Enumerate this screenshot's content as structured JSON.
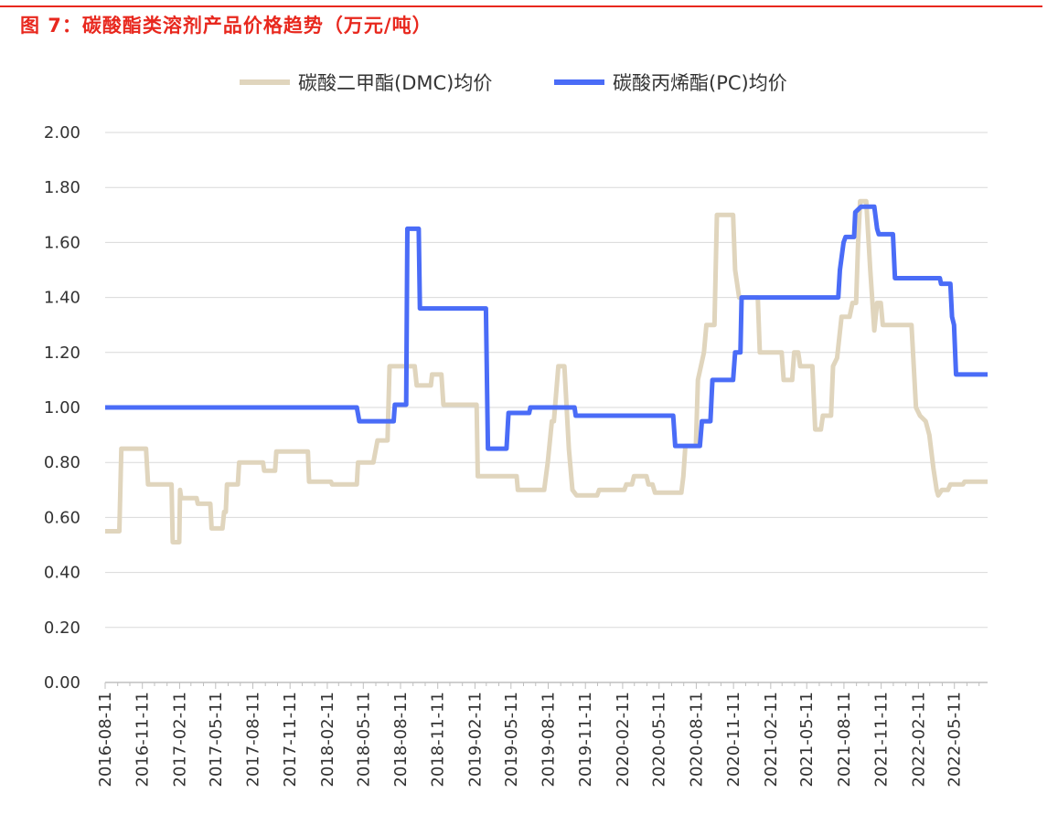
{
  "figure": {
    "title": "图 7：碳酸酯类溶剂产品价格趋势（万元/吨）"
  },
  "chart_data": {
    "type": "line",
    "title": "",
    "xlabel": "",
    "ylabel": "",
    "ylim": [
      0,
      2.0
    ],
    "yticks": [
      "0.00",
      "0.20",
      "0.40",
      "0.60",
      "0.80",
      "1.00",
      "1.20",
      "1.40",
      "1.60",
      "1.80",
      "2.00"
    ],
    "xticks": [
      "2016-08-11",
      "2016-11-11",
      "2017-02-11",
      "2017-05-11",
      "2017-08-11",
      "2017-11-11",
      "2018-02-11",
      "2018-05-11",
      "2018-08-11",
      "2018-11-11",
      "2019-02-11",
      "2019-05-11",
      "2019-08-11",
      "2019-11-11",
      "2020-02-11",
      "2020-05-11",
      "2020-08-11",
      "2020-11-11",
      "2021-02-11",
      "2021-05-11",
      "2021-08-11",
      "2021-11-11",
      "2022-02-11",
      "2022-05-11"
    ],
    "x_range": [
      "2016-08-11",
      "2022-08-01"
    ],
    "grid": "horizontal",
    "legend_position": "top",
    "series": [
      {
        "name": "碳酸二甲酯(DMC)均价",
        "color": "#e0d5bd",
        "points": [
          [
            "2016-08-11",
            0.55
          ],
          [
            "2016-09-15",
            0.55
          ],
          [
            "2016-09-20",
            0.85
          ],
          [
            "2016-11-20",
            0.85
          ],
          [
            "2016-11-25",
            0.72
          ],
          [
            "2017-01-22",
            0.72
          ],
          [
            "2017-01-25",
            0.51
          ],
          [
            "2017-02-10",
            0.51
          ],
          [
            "2017-02-12",
            0.7
          ],
          [
            "2017-02-15",
            0.67
          ],
          [
            "2017-03-25",
            0.67
          ],
          [
            "2017-03-28",
            0.65
          ],
          [
            "2017-04-28",
            0.65
          ],
          [
            "2017-05-01",
            0.56
          ],
          [
            "2017-05-28",
            0.56
          ],
          [
            "2017-06-01",
            0.62
          ],
          [
            "2017-06-05",
            0.62
          ],
          [
            "2017-06-08",
            0.72
          ],
          [
            "2017-07-05",
            0.72
          ],
          [
            "2017-07-08",
            0.8
          ],
          [
            "2017-09-05",
            0.8
          ],
          [
            "2017-09-08",
            0.77
          ],
          [
            "2017-10-05",
            0.77
          ],
          [
            "2017-10-08",
            0.84
          ],
          [
            "2017-12-25",
            0.84
          ],
          [
            "2017-12-28",
            0.73
          ],
          [
            "2018-02-20",
            0.73
          ],
          [
            "2018-02-23",
            0.72
          ],
          [
            "2018-04-25",
            0.72
          ],
          [
            "2018-04-28",
            0.8
          ],
          [
            "2018-06-05",
            0.8
          ],
          [
            "2018-06-15",
            0.88
          ],
          [
            "2018-07-10",
            0.88
          ],
          [
            "2018-07-15",
            1.15
          ],
          [
            "2018-09-15",
            1.15
          ],
          [
            "2018-09-20",
            1.08
          ],
          [
            "2018-10-25",
            1.08
          ],
          [
            "2018-10-28",
            1.12
          ],
          [
            "2018-11-20",
            1.12
          ],
          [
            "2018-11-25",
            1.01
          ],
          [
            "2019-02-15",
            1.01
          ],
          [
            "2019-02-18",
            0.75
          ],
          [
            "2019-05-25",
            0.75
          ],
          [
            "2019-05-28",
            0.7
          ],
          [
            "2019-08-01",
            0.7
          ],
          [
            "2019-08-10",
            0.8
          ],
          [
            "2019-08-20",
            0.95
          ],
          [
            "2019-08-25",
            0.95
          ],
          [
            "2019-09-05",
            1.15
          ],
          [
            "2019-09-20",
            1.15
          ],
          [
            "2019-10-01",
            0.85
          ],
          [
            "2019-10-10",
            0.7
          ],
          [
            "2019-10-20",
            0.68
          ],
          [
            "2019-12-10",
            0.68
          ],
          [
            "2019-12-15",
            0.7
          ],
          [
            "2020-02-15",
            0.7
          ],
          [
            "2020-02-20",
            0.72
          ],
          [
            "2020-03-05",
            0.72
          ],
          [
            "2020-03-10",
            0.75
          ],
          [
            "2020-04-10",
            0.75
          ],
          [
            "2020-04-15",
            0.72
          ],
          [
            "2020-04-25",
            0.72
          ],
          [
            "2020-05-01",
            0.69
          ],
          [
            "2020-07-05",
            0.69
          ],
          [
            "2020-07-10",
            0.75
          ],
          [
            "2020-07-15",
            0.86
          ],
          [
            "2020-08-10",
            0.86
          ],
          [
            "2020-08-15",
            1.1
          ],
          [
            "2020-08-30",
            1.2
          ],
          [
            "2020-09-05",
            1.3
          ],
          [
            "2020-09-25",
            1.3
          ],
          [
            "2020-10-01",
            1.7
          ],
          [
            "2020-11-10",
            1.7
          ],
          [
            "2020-11-15",
            1.5
          ],
          [
            "2020-11-25",
            1.4
          ],
          [
            "2021-01-10",
            1.4
          ],
          [
            "2021-01-15",
            1.2
          ],
          [
            "2021-03-10",
            1.2
          ],
          [
            "2021-03-15",
            1.1
          ],
          [
            "2021-04-05",
            1.1
          ],
          [
            "2021-04-10",
            1.2
          ],
          [
            "2021-04-20",
            1.2
          ],
          [
            "2021-04-25",
            1.15
          ],
          [
            "2021-05-25",
            1.15
          ],
          [
            "2021-06-01",
            0.92
          ],
          [
            "2021-06-15",
            0.92
          ],
          [
            "2021-06-20",
            0.97
          ],
          [
            "2021-07-10",
            0.97
          ],
          [
            "2021-07-15",
            1.15
          ],
          [
            "2021-07-25",
            1.18
          ],
          [
            "2021-08-05",
            1.33
          ],
          [
            "2021-08-25",
            1.33
          ],
          [
            "2021-09-01",
            1.38
          ],
          [
            "2021-09-10",
            1.38
          ],
          [
            "2021-09-15",
            1.6
          ],
          [
            "2021-09-20",
            1.75
          ],
          [
            "2021-10-05",
            1.75
          ],
          [
            "2021-10-15",
            1.5
          ],
          [
            "2021-10-25",
            1.28
          ],
          [
            "2021-11-01",
            1.38
          ],
          [
            "2021-11-10",
            1.38
          ],
          [
            "2021-11-15",
            1.3
          ],
          [
            "2022-01-25",
            1.3
          ],
          [
            "2022-02-05",
            1.0
          ],
          [
            "2022-02-15",
            0.97
          ],
          [
            "2022-03-01",
            0.95
          ],
          [
            "2022-03-10",
            0.9
          ],
          [
            "2022-03-20",
            0.78
          ],
          [
            "2022-03-28",
            0.7
          ],
          [
            "2022-04-01",
            0.68
          ],
          [
            "2022-04-10",
            0.7
          ],
          [
            "2022-04-25",
            0.7
          ],
          [
            "2022-05-01",
            0.72
          ],
          [
            "2022-06-01",
            0.72
          ],
          [
            "2022-06-05",
            0.73
          ],
          [
            "2022-08-01",
            0.73
          ]
        ]
      },
      {
        "name": "碳酸丙烯酯(PC)均价",
        "color": "#4a6cf7",
        "points": [
          [
            "2016-08-11",
            1.0
          ],
          [
            "2018-04-25",
            1.0
          ],
          [
            "2018-05-01",
            0.95
          ],
          [
            "2018-07-25",
            0.95
          ],
          [
            "2018-07-28",
            1.01
          ],
          [
            "2018-08-25",
            1.01
          ],
          [
            "2018-08-28",
            1.65
          ],
          [
            "2018-09-25",
            1.65
          ],
          [
            "2018-09-28",
            1.36
          ],
          [
            "2019-03-10",
            1.36
          ],
          [
            "2019-03-15",
            0.85
          ],
          [
            "2019-04-30",
            0.85
          ],
          [
            "2019-05-05",
            0.98
          ],
          [
            "2019-06-25",
            0.98
          ],
          [
            "2019-06-28",
            1.0
          ],
          [
            "2019-10-15",
            1.0
          ],
          [
            "2019-10-18",
            0.97
          ],
          [
            "2020-06-15",
            0.97
          ],
          [
            "2020-06-20",
            0.86
          ],
          [
            "2020-08-20",
            0.86
          ],
          [
            "2020-08-25",
            0.95
          ],
          [
            "2020-09-15",
            0.95
          ],
          [
            "2020-09-20",
            1.1
          ],
          [
            "2020-11-10",
            1.1
          ],
          [
            "2020-11-15",
            1.2
          ],
          [
            "2020-11-28",
            1.2
          ],
          [
            "2020-12-01",
            1.4
          ],
          [
            "2021-07-28",
            1.4
          ],
          [
            "2021-08-01",
            1.5
          ],
          [
            "2021-08-10",
            1.6
          ],
          [
            "2021-08-15",
            1.62
          ],
          [
            "2021-09-05",
            1.62
          ],
          [
            "2021-09-08",
            1.71
          ],
          [
            "2021-09-22",
            1.73
          ],
          [
            "2021-10-25",
            1.73
          ],
          [
            "2021-11-01",
            1.65
          ],
          [
            "2021-11-05",
            1.63
          ],
          [
            "2021-12-10",
            1.63
          ],
          [
            "2021-12-15",
            1.47
          ],
          [
            "2022-04-05",
            1.47
          ],
          [
            "2022-04-08",
            1.45
          ],
          [
            "2022-05-01",
            1.45
          ],
          [
            "2022-05-05",
            1.33
          ],
          [
            "2022-05-10",
            1.3
          ],
          [
            "2022-05-15",
            1.12
          ],
          [
            "2022-08-01",
            1.12
          ]
        ]
      }
    ]
  }
}
